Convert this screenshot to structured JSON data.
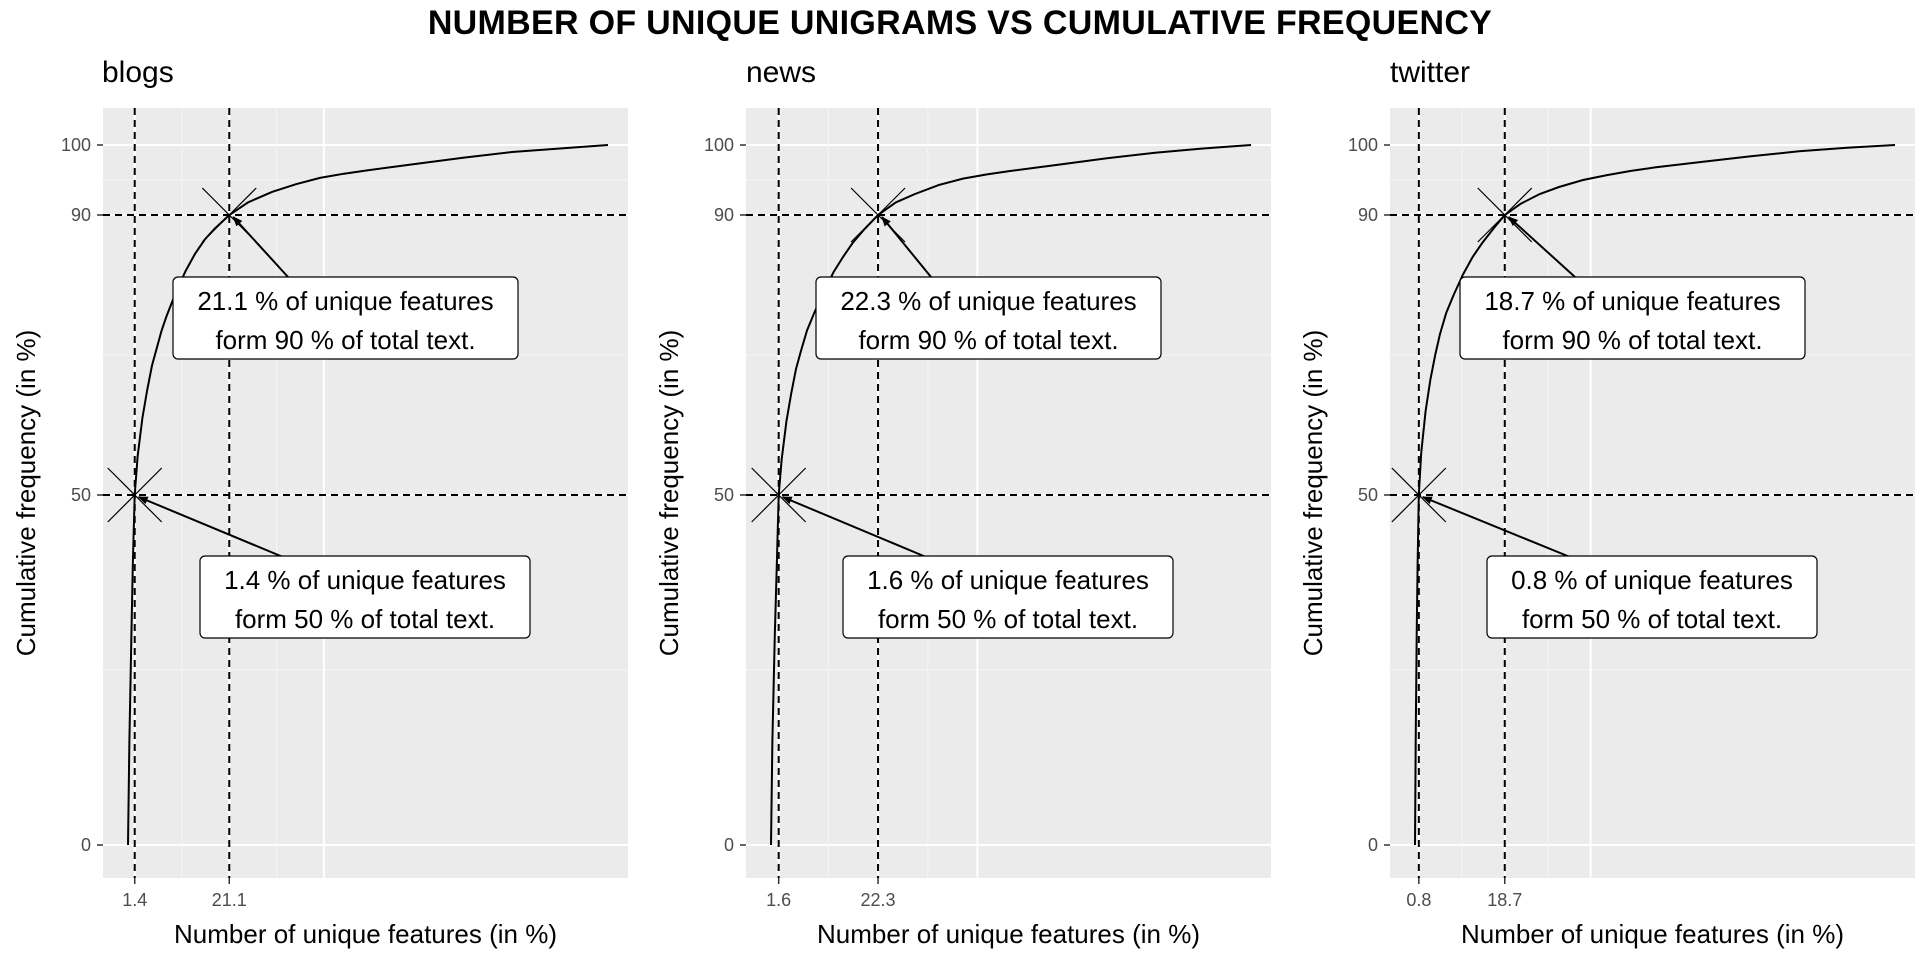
{
  "figure_title": "NUMBER OF UNIQUE UNIGRAMS VS CUMULATIVE FREQUENCY",
  "colors": {
    "panel_background": "#EBEBEB",
    "grid_major": "#FFFFFF",
    "curve": "#000000",
    "reference_lines": "#000000",
    "label_box_fill": "#FFFFFF"
  },
  "chart_data": [
    {
      "type": "line",
      "title": "blogs",
      "xlabel": "Number of unique features (in %)",
      "ylabel": "Cumulative frequency (in %)",
      "xlim": [
        0,
        100
      ],
      "ylim": [
        0,
        100
      ],
      "grid": true,
      "x_ticks": [
        "1.4",
        "21.1"
      ],
      "y_ticks": [
        "0",
        "50",
        "90",
        "100"
      ],
      "curve": {
        "x": [
          0,
          0.3,
          0.7,
          1.0,
          1.4,
          2,
          3,
          4,
          5,
          6,
          7,
          8,
          10,
          12,
          14,
          16,
          18,
          21.1,
          25,
          30,
          35,
          40,
          45,
          50,
          60,
          70,
          80,
          90,
          100
        ],
        "y": [
          0,
          15,
          30,
          40,
          50,
          55.5,
          61,
          65,
          68.5,
          71,
          73.5,
          75.5,
          79,
          82,
          84.5,
          86.5,
          88,
          90,
          91.8,
          93.3,
          94.4,
          95.3,
          95.9,
          96.4,
          97.3,
          98.2,
          99,
          99.5,
          100
        ]
      },
      "markers": [
        {
          "x": 1.4,
          "y": 50,
          "symbol": "x"
        },
        {
          "x": 21.1,
          "y": 90,
          "symbol": "x"
        }
      ],
      "reference_lines": {
        "vertical": [
          1.4,
          21.1
        ],
        "horizontal": [
          50,
          90
        ]
      },
      "annotations": [
        {
          "line1": "21.1 % of unique features",
          "line2": "form 90 % of total text.",
          "points_to": {
            "x": 21.1,
            "y": 90
          }
        },
        {
          "line1": "1.4 % of unique features",
          "line2": "form 50 % of total text.",
          "points_to": {
            "x": 1.4,
            "y": 50
          }
        }
      ]
    },
    {
      "type": "line",
      "title": "news",
      "xlabel": "Number of unique features (in %)",
      "ylabel": "Cumulative frequency (in %)",
      "xlim": [
        0,
        100
      ],
      "ylim": [
        0,
        100
      ],
      "grid": true,
      "x_ticks": [
        "1.6",
        "22.3"
      ],
      "y_ticks": [
        "0",
        "50",
        "90",
        "100"
      ],
      "curve": {
        "x": [
          0,
          0.3,
          0.8,
          1.2,
          1.6,
          2.2,
          3.2,
          4.2,
          5.2,
          6.2,
          7.5,
          9,
          11,
          13,
          15,
          17,
          19.5,
          22.3,
          26,
          30,
          35,
          40,
          45,
          50,
          60,
          70,
          80,
          90,
          100
        ],
        "y": [
          0,
          15,
          30,
          40,
          50,
          55,
          60.5,
          64.5,
          68,
          70.5,
          73.5,
          76,
          79,
          81.8,
          84,
          86,
          88,
          90,
          91.8,
          93,
          94.3,
          95.2,
          95.8,
          96.3,
          97.2,
          98.1,
          98.9,
          99.5,
          100
        ]
      },
      "markers": [
        {
          "x": 1.6,
          "y": 50,
          "symbol": "x"
        },
        {
          "x": 22.3,
          "y": 90,
          "symbol": "x"
        }
      ],
      "reference_lines": {
        "vertical": [
          1.6,
          22.3
        ],
        "horizontal": [
          50,
          90
        ]
      },
      "annotations": [
        {
          "line1": "22.3 % of unique features",
          "line2": "form 90 % of total text.",
          "points_to": {
            "x": 22.3,
            "y": 90
          }
        },
        {
          "line1": "1.6 % of unique features",
          "line2": "form 50 % of total text.",
          "points_to": {
            "x": 1.6,
            "y": 50
          }
        }
      ]
    },
    {
      "type": "line",
      "title": "twitter",
      "xlabel": "Number of unique features (in %)",
      "ylabel": "Cumulative frequency (in %)",
      "xlim": [
        0,
        100
      ],
      "ylim": [
        0,
        100
      ],
      "grid": true,
      "x_ticks": [
        "0.8",
        "18.7"
      ],
      "y_ticks": [
        "0",
        "50",
        "90",
        "100"
      ],
      "curve": {
        "x": [
          0,
          0.15,
          0.35,
          0.55,
          0.8,
          1.3,
          2.2,
          3.2,
          4.2,
          5.2,
          6.5,
          8,
          10,
          12,
          14,
          16.5,
          18.7,
          22,
          26,
          30,
          35,
          40,
          45,
          50,
          60,
          70,
          80,
          90,
          100
        ],
        "y": [
          0,
          15,
          30,
          40,
          50,
          56,
          62,
          66.5,
          70,
          73,
          76,
          78.5,
          81.5,
          84,
          86,
          88.2,
          90,
          91.6,
          93,
          94,
          95,
          95.7,
          96.3,
          96.8,
          97.6,
          98.4,
          99.1,
          99.6,
          100
        ]
      },
      "markers": [
        {
          "x": 0.8,
          "y": 50,
          "symbol": "x"
        },
        {
          "x": 18.7,
          "y": 90,
          "symbol": "x"
        }
      ],
      "reference_lines": {
        "vertical": [
          0.8,
          18.7
        ],
        "horizontal": [
          50,
          90
        ]
      },
      "annotations": [
        {
          "line1": "18.7 % of unique features",
          "line2": "form 90 % of total text.",
          "points_to": {
            "x": 18.7,
            "y": 90
          }
        },
        {
          "line1": "0.8 % of unique features",
          "line2": "form 50 % of total text.",
          "points_to": {
            "x": 0.8,
            "y": 50
          }
        }
      ]
    }
  ]
}
